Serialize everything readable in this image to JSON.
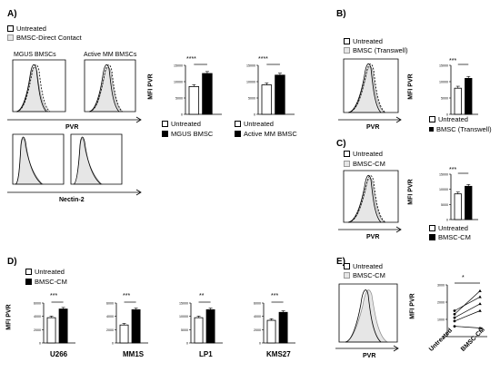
{
  "panels": {
    "A": {
      "label": "A)",
      "legend": [
        "Untreated",
        "BMSC-Direct Contact"
      ],
      "hist_titles": [
        "MGUS BMSCs",
        "Active MM  BMSCs"
      ],
      "pvr_axis": "PVR",
      "nectin_axis": "Nectin-2",
      "bar_ylabel": "MFI  PVR",
      "bar_legend_1": [
        "Untreated",
        "MGUS BMSC"
      ],
      "bar_legend_2": [
        "Untreated",
        "Active MM BMSC"
      ],
      "sig_1": "****",
      "sig_2": "****"
    },
    "B": {
      "label": "B)",
      "legend": [
        "Untreated",
        "BMSC (Transwell)"
      ],
      "hist_axis": "PVR",
      "bar_ylabel": "MFI  PVR",
      "bar_legend": [
        "Untreated",
        "BMSC (Transwell)"
      ],
      "sig": "***"
    },
    "C": {
      "label": "C)",
      "legend": [
        "Untreated",
        "BMSC-CM"
      ],
      "hist_axis": "PVR",
      "bar_ylabel": "MFI  PVR",
      "bar_legend": [
        "Untreated",
        "BMSC-CM"
      ],
      "sig": "***"
    },
    "D": {
      "label": "D)",
      "legend": [
        "Untreated",
        "BMSC-CM"
      ],
      "ylabel": "MFI PVR",
      "cell_lines": [
        "U266",
        "MM1S",
        "LP1",
        "KMS27"
      ],
      "sigs": [
        "***",
        "***",
        "**",
        "***"
      ]
    },
    "E": {
      "label": "E)",
      "legend": [
        "Untreated",
        "BMSC-CM"
      ],
      "hist_axis": "PVR",
      "ylabel": "MFI PVR",
      "categories": [
        "Untreated",
        "BMSC-CM"
      ],
      "sig": "*"
    }
  },
  "chart_data": [
    {
      "type": "bar",
      "id": "A-mgus",
      "categories": [
        "Untreated",
        "MGUS BMSC"
      ],
      "values": [
        8500,
        12500
      ],
      "ylim": [
        0,
        15000
      ],
      "ylabel": "MFI  PVR",
      "ticks": [
        "0",
        "5000",
        "10000",
        "15000"
      ]
    },
    {
      "type": "bar",
      "id": "A-active",
      "categories": [
        "Untreated",
        "Active MM BMSC"
      ],
      "values": [
        9000,
        12000
      ],
      "ylim": [
        0,
        15000
      ],
      "ticks": [
        "0",
        "5000",
        "10000",
        "15000"
      ]
    },
    {
      "type": "bar",
      "id": "B",
      "categories": [
        "Untreated",
        "BMSC (Transwell)"
      ],
      "values": [
        8000,
        11000
      ],
      "ylim": [
        0,
        15000
      ],
      "ylabel": "MFI  PVR",
      "ticks": [
        "0",
        "5000",
        "10000",
        "15000"
      ]
    },
    {
      "type": "bar",
      "id": "C",
      "categories": [
        "Untreated",
        "BMSC-CM"
      ],
      "values": [
        8500,
        11000
      ],
      "ylim": [
        0,
        15000
      ],
      "ylabel": "MFI  PVR",
      "ticks": [
        "0",
        "5000",
        "10000",
        "15000"
      ]
    },
    {
      "type": "bar",
      "id": "D-U266",
      "categories": [
        "Untreated",
        "BMSC-CM"
      ],
      "values": [
        3800,
        5100
      ],
      "ylim": [
        0,
        6000
      ],
      "ticks": [
        "0",
        "2000",
        "4000",
        "6000"
      ],
      "xlabel": "U266"
    },
    {
      "type": "bar",
      "id": "D-MM1S",
      "categories": [
        "Untreated",
        "BMSC-CM"
      ],
      "values": [
        2700,
        5000
      ],
      "ylim": [
        0,
        6000
      ],
      "ticks": [
        "0",
        "2000",
        "4000",
        "6000"
      ],
      "xlabel": "MM1S"
    },
    {
      "type": "bar",
      "id": "D-LP1",
      "categories": [
        "Untreated",
        "BMSC-CM"
      ],
      "values": [
        9500,
        12500
      ],
      "ylim": [
        0,
        15000
      ],
      "ticks": [
        "0",
        "5000",
        "10000",
        "15000"
      ],
      "xlabel": "LP1"
    },
    {
      "type": "bar",
      "id": "D-KMS27",
      "categories": [
        "Untreated",
        "BMSC-CM"
      ],
      "values": [
        3400,
        4600
      ],
      "ylim": [
        0,
        6000
      ],
      "ticks": [
        "0",
        "2000",
        "4000",
        "6000"
      ],
      "xlabel": "KMS27"
    },
    {
      "type": "line",
      "id": "E",
      "categories": [
        "Untreated",
        "BMSC-CM"
      ],
      "ylim": [
        0,
        3000
      ],
      "ticks": [
        "0",
        "1000",
        "2000",
        "3000"
      ],
      "series": [
        {
          "values": [
            1300,
            2650
          ]
        },
        {
          "values": [
            1500,
            2300
          ]
        },
        {
          "values": [
            1100,
            1900
          ]
        },
        {
          "values": [
            900,
            1500
          ]
        },
        {
          "values": [
            600,
            500
          ]
        }
      ]
    }
  ]
}
